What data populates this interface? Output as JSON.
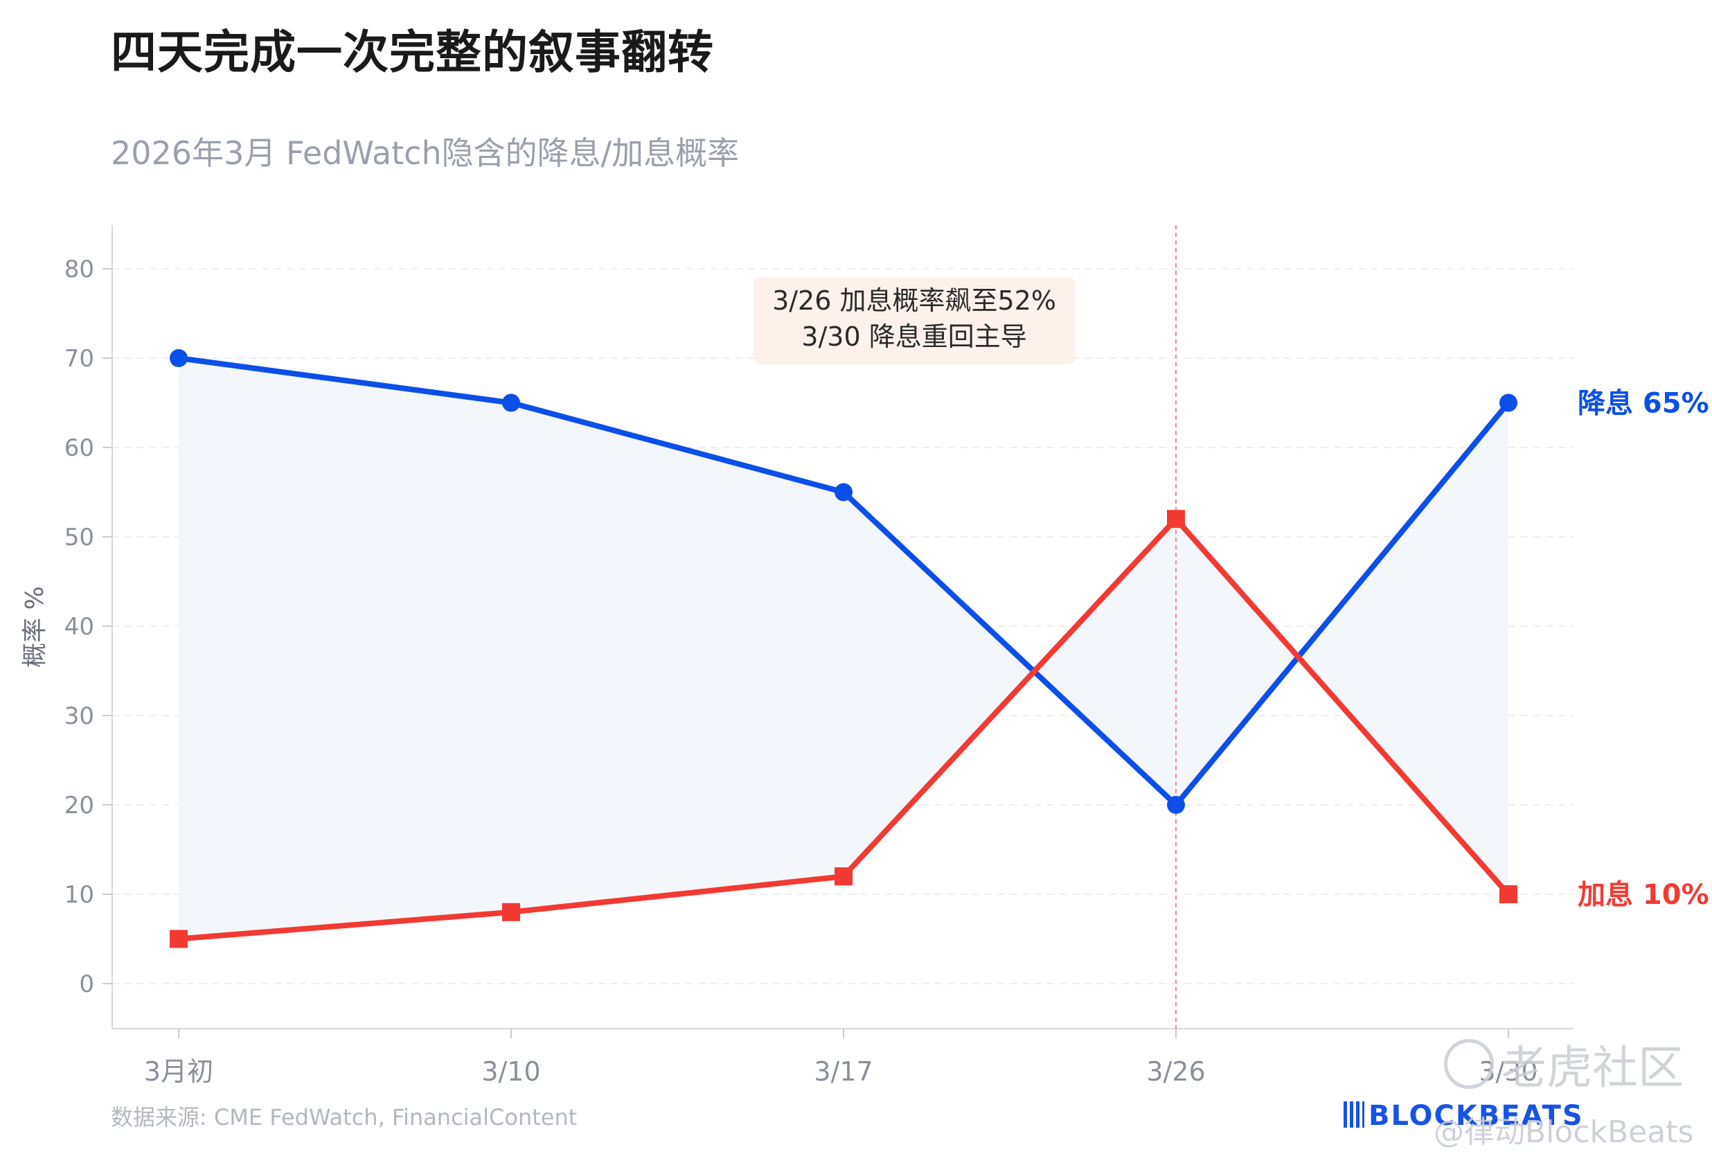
{
  "header": {
    "title": "四天完成一次完整的叙事翻转",
    "subtitle": "2026年3月 FedWatch隐含的降息/加息概率"
  },
  "footer": {
    "source": "数据来源: CME FedWatch, FinancialContent",
    "brand": "BLOCKBEATS",
    "watermark_1": "老虎社区",
    "watermark_2": "@律动BlockBeats"
  },
  "colors": {
    "cut": "#0b4fe8",
    "hike": "#f23a32",
    "fill": "#f3f6fb",
    "annotation_bg": "#fdf1ec",
    "marker_line": "#f08a88"
  },
  "chart_data": {
    "type": "line",
    "title": "四天完成一次完整的叙事翻转",
    "subtitle": "2026年3月 FedWatch隐含的降息/加息概率",
    "xlabel": "",
    "ylabel": "概率 %",
    "categories": [
      "3月初",
      "3/10",
      "3/17",
      "3/26",
      "3/30"
    ],
    "ylim": [
      -5,
      85
    ],
    "yticks": [
      0,
      10,
      20,
      30,
      40,
      50,
      60,
      70,
      80
    ],
    "grid": true,
    "legend": "none",
    "series": [
      {
        "name": "降息",
        "marker": "circle",
        "values": [
          70,
          65,
          55,
          20,
          65
        ],
        "end_label": "降息 65%"
      },
      {
        "name": "加息",
        "marker": "square",
        "values": [
          5,
          8,
          12,
          52,
          10
        ],
        "end_label": "加息 10%"
      }
    ],
    "fill_between": true,
    "vline_category": "3/26",
    "annotation": {
      "lines": [
        "3/26 加息概率飙至52%",
        "3/30 降息重回主导"
      ]
    }
  }
}
